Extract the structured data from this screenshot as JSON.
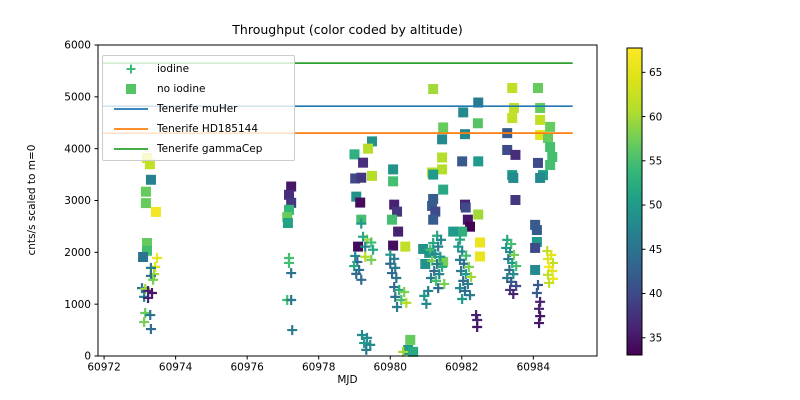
{
  "figure": {
    "title": "Throughput (color coded by altitude)",
    "xlabel": "MJD",
    "ylabel": "cnts/s scaled to m=0"
  },
  "legend": {
    "items": [
      {
        "label": "iodine",
        "type": "plus",
        "color": "#3dbc74"
      },
      {
        "label": "no iodine",
        "type": "square",
        "color": "#55c467"
      },
      {
        "label": "Tenerife muHer",
        "type": "line",
        "color": "#1f77b4"
      },
      {
        "label": "Tenerife HD185144",
        "type": "line",
        "color": "#ff7f0e"
      },
      {
        "label": "Tenerife gammaCep",
        "type": "line",
        "color": "#2ca02c"
      }
    ]
  },
  "chart_data": {
    "type": "scatter",
    "title": "Throughput (color coded by altitude)",
    "xlabel": "MJD",
    "ylabel": "cnts/s scaled to m=0",
    "xlim": [
      60971.83,
      60985.78
    ],
    "ylim": [
      0,
      6000
    ],
    "xticks": [
      60972,
      60974,
      60976,
      60978,
      60980,
      60982,
      60984
    ],
    "yticks": [
      0,
      1000,
      2000,
      3000,
      4000,
      5000,
      6000
    ],
    "grid": false,
    "legend_position": "upper left",
    "colorbar": {
      "colormap": "viridis",
      "vmin": 33,
      "vmax": 68,
      "ticks": [
        35,
        40,
        45,
        50,
        55,
        60,
        65
      ],
      "meaning": "altitude"
    },
    "reference_lines": [
      {
        "label": "Tenerife muHer",
        "y": 4820,
        "color": "#1f77b4",
        "x_start": 60971.95,
        "x_end": 60985.1
      },
      {
        "label": "Tenerife HD185144",
        "y": 4300,
        "color": "#ff7f0e",
        "x_start": 60971.95,
        "x_end": 60985.1
      },
      {
        "label": "Tenerife gammaCep",
        "y": 5650,
        "color": "#2ca02c",
        "x_start": 60971.95,
        "x_end": 60985.1
      }
    ],
    "series": [
      {
        "name": "no iodine",
        "marker": "square",
        "points_format": [
          "mjd",
          "cnts_per_s",
          "altitude"
        ],
        "points": [
          [
            60973.2,
            3820,
            64
          ],
          [
            60973.28,
            3700,
            62
          ],
          [
            60973.31,
            3400,
            47
          ],
          [
            60973.17,
            3170,
            57
          ],
          [
            60973.17,
            2950,
            57
          ],
          [
            60973.45,
            2780,
            67
          ],
          [
            60973.2,
            2180,
            57
          ],
          [
            60973.2,
            2030,
            55
          ],
          [
            60973.09,
            1910,
            45
          ],
          [
            60977.23,
            3270,
            35
          ],
          [
            60977.17,
            3110,
            37
          ],
          [
            60977.23,
            2955,
            38
          ],
          [
            60977.17,
            2820,
            54
          ],
          [
            60977.12,
            2680,
            57
          ],
          [
            60977.14,
            2565,
            51
          ],
          [
            60979.49,
            4140,
            49
          ],
          [
            60979.38,
            4000,
            61
          ],
          [
            60979.0,
            3890,
            53
          ],
          [
            60979.24,
            3730,
            37
          ],
          [
            60979.49,
            3475,
            61
          ],
          [
            60979.02,
            3425,
            40
          ],
          [
            60979.19,
            3440,
            38
          ],
          [
            60979.05,
            3075,
            49
          ],
          [
            60979.16,
            2960,
            34
          ],
          [
            60979.19,
            2630,
            55
          ],
          [
            60979.1,
            2110,
            34
          ],
          [
            60980.08,
            3600,
            49
          ],
          [
            60980.08,
            3370,
            55
          ],
          [
            60980.11,
            2920,
            36
          ],
          [
            60980.19,
            2785,
            38
          ],
          [
            60980.05,
            2630,
            55
          ],
          [
            60980.22,
            2400,
            36
          ],
          [
            60980.08,
            2130,
            34
          ],
          [
            60980.42,
            2110,
            62
          ],
          [
            60980.56,
            310,
            57
          ],
          [
            60980.5,
            116,
            50
          ],
          [
            60980.64,
            80,
            52
          ],
          [
            60981.2,
            5150,
            60
          ],
          [
            60981.48,
            4410,
            57
          ],
          [
            60981.45,
            4180,
            48
          ],
          [
            60981.45,
            3830,
            61
          ],
          [
            60981.45,
            3600,
            61
          ],
          [
            60981.17,
            3540,
            61
          ],
          [
            60981.2,
            3500,
            50
          ],
          [
            60981.48,
            3210,
            52
          ],
          [
            60981.2,
            3030,
            42
          ],
          [
            60981.17,
            2895,
            42
          ],
          [
            60981.26,
            2785,
            40
          ],
          [
            60981.2,
            2630,
            42
          ],
          [
            60980.92,
            2065,
            49
          ],
          [
            60981.09,
            1990,
            49
          ],
          [
            60980.98,
            1775,
            49
          ],
          [
            60981.48,
            1815,
            58
          ],
          [
            60982.04,
            4700,
            48
          ],
          [
            60982.46,
            4890,
            46
          ],
          [
            60982.45,
            4490,
            56
          ],
          [
            60982.09,
            4280,
            48
          ],
          [
            60982.01,
            3755,
            42
          ],
          [
            60982.46,
            3755,
            50
          ],
          [
            60982.09,
            2920,
            36
          ],
          [
            60982.11,
            2865,
            40
          ],
          [
            60982.17,
            2630,
            35
          ],
          [
            60982.23,
            2495,
            33
          ],
          [
            60982.01,
            2400,
            53
          ],
          [
            60981.76,
            2400,
            50
          ],
          [
            60982.46,
            2730,
            60
          ],
          [
            60982.51,
            2190,
            66
          ],
          [
            60982.51,
            1920,
            66
          ],
          [
            60983.41,
            5170,
            62
          ],
          [
            60983.46,
            4785,
            62
          ],
          [
            60983.41,
            4590,
            62
          ],
          [
            60983.27,
            4300,
            42
          ],
          [
            60983.27,
            3975,
            40
          ],
          [
            60983.5,
            3880,
            37
          ],
          [
            60983.41,
            3490,
            50
          ],
          [
            60983.44,
            3435,
            48
          ],
          [
            60983.5,
            3010,
            38
          ],
          [
            60984.13,
            5170,
            57
          ],
          [
            60984.19,
            4785,
            57
          ],
          [
            60984.19,
            4555,
            62
          ],
          [
            60984.47,
            4420,
            57
          ],
          [
            60984.19,
            4265,
            65
          ],
          [
            60984.41,
            4205,
            57
          ],
          [
            60984.47,
            4030,
            55
          ],
          [
            60984.53,
            3840,
            55
          ],
          [
            60984.47,
            3685,
            55
          ],
          [
            60984.13,
            3725,
            40
          ],
          [
            60984.27,
            3490,
            50
          ],
          [
            60984.19,
            3435,
            48
          ],
          [
            60984.05,
            2530,
            42
          ],
          [
            60984.1,
            2430,
            42
          ],
          [
            60984.1,
            2200,
            50
          ],
          [
            60984.05,
            2085,
            40
          ],
          [
            60984.05,
            1660,
            48
          ]
        ]
      },
      {
        "name": "iodine",
        "marker": "plus",
        "points_format": [
          "mjd",
          "cnts_per_s",
          "altitude"
        ],
        "points": [
          [
            60973.48,
            1890,
            66
          ],
          [
            60973.43,
            1720,
            65
          ],
          [
            60973.31,
            1700,
            46
          ],
          [
            60973.4,
            1580,
            60
          ],
          [
            60973.31,
            1545,
            44
          ],
          [
            60973.37,
            1470,
            58
          ],
          [
            60973.06,
            1310,
            45
          ],
          [
            60973.15,
            1295,
            60
          ],
          [
            60973.23,
            1255,
            36
          ],
          [
            60973.34,
            1215,
            35
          ],
          [
            60973.12,
            1140,
            47
          ],
          [
            60973.23,
            1120,
            36
          ],
          [
            60973.15,
            830,
            57
          ],
          [
            60973.29,
            790,
            45
          ],
          [
            60973.12,
            655,
            58
          ],
          [
            60973.31,
            520,
            44
          ],
          [
            60977.17,
            1890,
            55
          ],
          [
            60977.17,
            1795,
            55
          ],
          [
            60977.23,
            1600,
            45
          ],
          [
            60977.12,
            1080,
            55
          ],
          [
            60977.23,
            1080,
            46
          ],
          [
            60977.26,
            500,
            46
          ],
          [
            60979.19,
            2555,
            50
          ],
          [
            60979.35,
            2245,
            60
          ],
          [
            60979.24,
            2300,
            52
          ],
          [
            60979.47,
            2190,
            55
          ],
          [
            60979.3,
            2110,
            48
          ],
          [
            60979.52,
            2050,
            52
          ],
          [
            60979.3,
            1915,
            61
          ],
          [
            60979.47,
            1855,
            58
          ],
          [
            60979.02,
            1930,
            48
          ],
          [
            60979.08,
            1815,
            44
          ],
          [
            60978.99,
            1735,
            52
          ],
          [
            60979.13,
            1660,
            45
          ],
          [
            60979.05,
            1585,
            44
          ],
          [
            60979.19,
            1470,
            44
          ],
          [
            60979.21,
            405,
            48
          ],
          [
            60979.35,
            350,
            48
          ],
          [
            60979.27,
            250,
            50
          ],
          [
            60979.44,
            215,
            48
          ],
          [
            60979.33,
            118,
            46
          ],
          [
            60980.0,
            1955,
            49
          ],
          [
            60980.11,
            1875,
            46
          ],
          [
            60980.0,
            1780,
            44
          ],
          [
            60980.14,
            1700,
            46
          ],
          [
            60980.05,
            1600,
            44
          ],
          [
            60980.17,
            1505,
            45
          ],
          [
            60980.11,
            1330,
            44
          ],
          [
            60980.25,
            1275,
            52
          ],
          [
            60980.39,
            1235,
            58
          ],
          [
            60980.14,
            1140,
            45
          ],
          [
            60980.31,
            1080,
            55
          ],
          [
            60980.45,
            1025,
            61
          ],
          [
            60980.19,
            945,
            46
          ],
          [
            60980.36,
            80,
            60
          ],
          [
            60981.31,
            2320,
            52
          ],
          [
            60981.42,
            2240,
            48
          ],
          [
            60981.2,
            2180,
            52
          ],
          [
            60981.34,
            2110,
            46
          ],
          [
            60981.12,
            2050,
            55
          ],
          [
            60981.26,
            1970,
            48
          ],
          [
            60981.4,
            1915,
            50
          ],
          [
            60981.17,
            1835,
            58
          ],
          [
            60981.31,
            1775,
            46
          ],
          [
            60981.45,
            1720,
            52
          ],
          [
            60981.23,
            1640,
            44
          ],
          [
            60981.37,
            1580,
            48
          ],
          [
            60981.14,
            1505,
            46
          ],
          [
            60981.28,
            1450,
            55
          ],
          [
            60981.51,
            1390,
            58
          ],
          [
            60981.34,
            1310,
            44
          ],
          [
            60981.06,
            1255,
            46
          ],
          [
            60980.95,
            1160,
            50
          ],
          [
            60981.01,
            1005,
            48
          ],
          [
            60981.95,
            2245,
            52
          ],
          [
            60981.9,
            2110,
            50
          ],
          [
            60982.01,
            2015,
            48
          ],
          [
            60982.12,
            1935,
            55
          ],
          [
            60981.95,
            1855,
            46
          ],
          [
            60982.06,
            1780,
            44
          ],
          [
            60982.2,
            1720,
            58
          ],
          [
            60981.98,
            1640,
            46
          ],
          [
            60982.12,
            1580,
            50
          ],
          [
            60982.26,
            1525,
            60
          ],
          [
            60982.04,
            1450,
            44
          ],
          [
            60982.17,
            1390,
            46
          ],
          [
            60981.95,
            1310,
            48
          ],
          [
            60982.09,
            1255,
            44
          ],
          [
            60982.23,
            1175,
            46
          ],
          [
            60982.01,
            1100,
            50
          ],
          [
            60982.4,
            790,
            36
          ],
          [
            60982.43,
            695,
            36
          ],
          [
            60982.43,
            560,
            35
          ],
          [
            60983.27,
            2240,
            52
          ],
          [
            60983.38,
            2160,
            55
          ],
          [
            60983.24,
            2085,
            50
          ],
          [
            60983.35,
            2005,
            48
          ],
          [
            60983.46,
            1950,
            58
          ],
          [
            60983.3,
            1870,
            46
          ],
          [
            60983.41,
            1795,
            50
          ],
          [
            60983.52,
            1735,
            55
          ],
          [
            60983.33,
            1660,
            44
          ],
          [
            60983.44,
            1580,
            48
          ],
          [
            60983.27,
            1505,
            46
          ],
          [
            60983.38,
            1430,
            42
          ],
          [
            60983.52,
            1350,
            40
          ],
          [
            60983.35,
            1275,
            38
          ],
          [
            60983.44,
            1195,
            36
          ],
          [
            60984.39,
            2025,
            62
          ],
          [
            60984.5,
            1950,
            65
          ],
          [
            60984.41,
            1870,
            65
          ],
          [
            60984.55,
            1795,
            62
          ],
          [
            60984.44,
            1720,
            67
          ],
          [
            60984.53,
            1640,
            65
          ],
          [
            60984.41,
            1565,
            62
          ],
          [
            60984.55,
            1490,
            66
          ],
          [
            60984.44,
            1410,
            62
          ],
          [
            60984.13,
            1370,
            42
          ],
          [
            60984.1,
            1215,
            42
          ],
          [
            60984.19,
            1045,
            36
          ],
          [
            60984.16,
            910,
            36
          ],
          [
            60984.19,
            770,
            35
          ],
          [
            60984.16,
            635,
            35
          ]
        ]
      }
    ]
  }
}
